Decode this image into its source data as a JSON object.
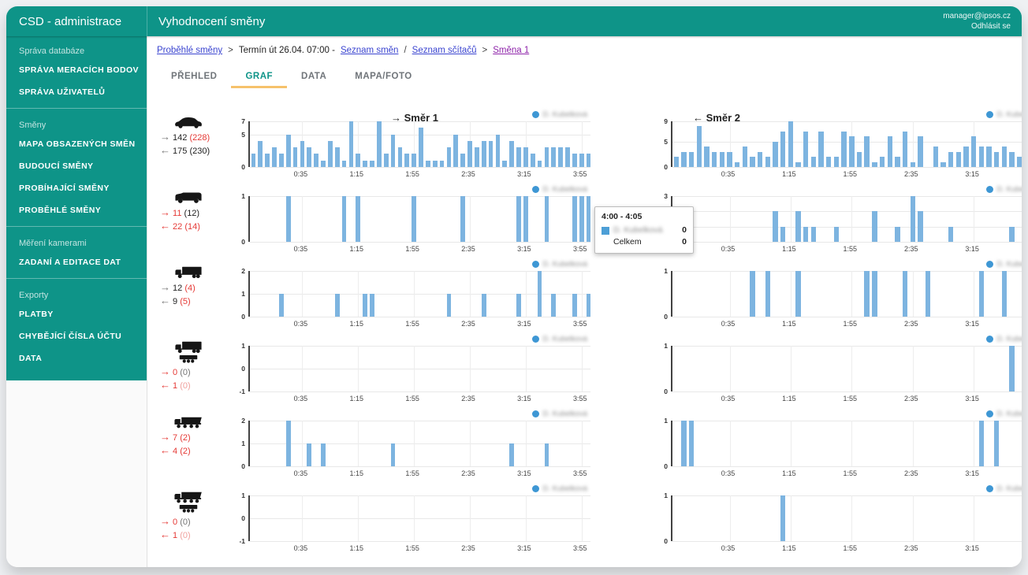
{
  "header": {
    "app_title": "CSD - administrace",
    "page_title": "Vyhodnocení směny",
    "user_email": "manager@ipsos.cz",
    "logout_label": "Odhlásit se"
  },
  "sidebar": {
    "sections": [
      {
        "label": "Správa databáze",
        "items": [
          "SPRÁVA MERACÍCH BODOV",
          "SPRÁVA UŽIVATELŮ"
        ]
      },
      {
        "label": "Směny",
        "items": [
          "MAPA OBSAZENÝCH SMĚN",
          "BUDOUCÍ SMĚNY",
          "PROBÍHAJÍCÍ SMĚNY",
          "PROBĚHLÉ SMĚNY"
        ]
      },
      {
        "label": "Měření kamerami",
        "items": [
          "ZADANÍ A EDITACE DAT"
        ]
      },
      {
        "label": "Exporty",
        "items": [
          "PLATBY",
          "CHYBĚJÍCÍ ČÍSLA ÚČTU",
          "DATA"
        ]
      }
    ]
  },
  "breadcrumb": {
    "parts": [
      {
        "text": "Proběhlé směny",
        "style": "link"
      },
      {
        "text": ">",
        "style": "sep"
      },
      {
        "text": "Termín út 26.04. 07:00 -",
        "style": "text"
      },
      {
        "text": "Seznam směn",
        "style": "link"
      },
      {
        "text": "/",
        "style": "sep"
      },
      {
        "text": "Seznam sčítačů",
        "style": "link"
      },
      {
        "text": ">",
        "style": "sep"
      },
      {
        "text": "Směna 1",
        "style": "link-visited"
      }
    ]
  },
  "tabs": [
    {
      "label": "PŘEHLED",
      "active": false
    },
    {
      "label": "GRAF",
      "active": true
    },
    {
      "label": "DATA",
      "active": false
    },
    {
      "label": "MAPA/FOTO",
      "active": false
    }
  ],
  "direction_headers": {
    "dir1": "→ Směr 1",
    "dir2": "← Směr 2"
  },
  "legend": {
    "name": "D. Kubelková"
  },
  "tooltip": {
    "title": "4:00 - 4:05",
    "series_name": "D. Kubelková",
    "series_value": "0",
    "total_label": "Celkem",
    "total_value": "0"
  },
  "colors": {
    "teal": "#0E9488",
    "bar_blue": "#7DB4E0",
    "legend_blue": "#3E97D4",
    "tooltip_square_blue": "#4D9FD6",
    "red": "#E53935",
    "tab_underline_amber": "#F6C26B",
    "link_blue": "#3B45D0",
    "link_visited_purple": "#8E24AA"
  },
  "chart_data": {
    "type": "bar",
    "bins": 49,
    "bin_minutes": 5,
    "x_ticks": [
      "0:35",
      "1:15",
      "1:55",
      "2:35",
      "3:15",
      "3:55"
    ],
    "tick_bins": [
      7,
      15,
      23,
      31,
      39,
      47
    ],
    "rows": [
      {
        "vehicle": "car",
        "dir1": {
          "arrow": "→",
          "value": "142",
          "paren": "(228)",
          "arrow_color": "gray",
          "value_color": "black",
          "paren_color": "red"
        },
        "dir2": {
          "arrow": "←",
          "value": "175",
          "paren": "(230)",
          "arrow_color": "gray",
          "value_color": "black",
          "paren_color": "black"
        },
        "left": {
          "ymin": 0,
          "ymax": 7,
          "ylabels": [
            7,
            5,
            0
          ],
          "values": [
            2,
            4,
            2,
            3,
            2,
            5,
            3,
            4,
            3,
            2,
            1,
            4,
            3,
            1,
            7,
            2,
            1,
            1,
            7,
            2,
            5,
            3,
            2,
            2,
            6,
            1,
            1,
            1,
            3,
            5,
            2,
            4,
            3,
            4,
            4,
            5,
            1,
            4,
            3,
            3,
            2,
            1,
            3,
            3,
            3,
            3,
            2,
            2,
            2
          ]
        },
        "right": {
          "ymin": 0,
          "ymax": 9,
          "ylabels": [
            9,
            5,
            0
          ],
          "values": [
            2,
            3,
            3,
            8,
            4,
            3,
            3,
            3,
            1,
            4,
            2,
            3,
            2,
            5,
            7,
            9,
            1,
            7,
            2,
            7,
            2,
            2,
            7,
            6,
            3,
            6,
            1,
            2,
            6,
            2,
            7,
            1,
            6,
            0,
            4,
            1,
            3,
            3,
            4,
            6,
            4,
            4,
            3,
            4,
            3,
            2,
            0,
            4,
            2
          ]
        }
      },
      {
        "vehicle": "van",
        "dir1": {
          "arrow": "→",
          "value": "11",
          "paren": "(12)",
          "arrow_color": "red",
          "value_color": "red",
          "paren_color": "black"
        },
        "dir2": {
          "arrow": "←",
          "value": "22",
          "paren": "(14)",
          "arrow_color": "red",
          "value_color": "red",
          "paren_color": "red"
        },
        "left": {
          "ymin": 0,
          "ymax": 1,
          "ylabels": [
            1,
            0
          ],
          "values": [
            0,
            0,
            0,
            0,
            0,
            1,
            0,
            0,
            0,
            0,
            0,
            0,
            0,
            1,
            0,
            1,
            0,
            0,
            0,
            0,
            0,
            0,
            0,
            1,
            0,
            0,
            0,
            0,
            0,
            0,
            1,
            0,
            0,
            0,
            0,
            0,
            0,
            0,
            1,
            1,
            0,
            0,
            1,
            0,
            0,
            0,
            1,
            1,
            1
          ]
        },
        "right": {
          "ymin": 0,
          "ymax": 3,
          "ylabels": [
            3,
            2,
            1,
            0
          ],
          "values": [
            0,
            0,
            1,
            0,
            0,
            0,
            0,
            0,
            0,
            0,
            0,
            0,
            0,
            2,
            1,
            0,
            2,
            1,
            1,
            0,
            0,
            1,
            0,
            0,
            0,
            0,
            2,
            0,
            0,
            1,
            0,
            3,
            2,
            0,
            0,
            0,
            1,
            0,
            0,
            0,
            0,
            0,
            0,
            0,
            1,
            0,
            0,
            2,
            1
          ]
        }
      },
      {
        "vehicle": "truck",
        "dir1": {
          "arrow": "→",
          "value": "12",
          "paren": "(4)",
          "arrow_color": "gray",
          "value_color": "black",
          "paren_color": "red"
        },
        "dir2": {
          "arrow": "←",
          "value": "9",
          "paren": "(5)",
          "arrow_color": "gray",
          "value_color": "black",
          "paren_color": "red"
        },
        "left": {
          "ymin": 0,
          "ymax": 2,
          "ylabels": [
            2,
            1,
            0
          ],
          "values": [
            0,
            0,
            0,
            0,
            1,
            0,
            0,
            0,
            0,
            0,
            0,
            0,
            1,
            0,
            0,
            0,
            1,
            1,
            0,
            0,
            0,
            0,
            0,
            0,
            0,
            0,
            0,
            0,
            1,
            0,
            0,
            0,
            0,
            1,
            0,
            0,
            0,
            0,
            1,
            0,
            0,
            2,
            0,
            1,
            0,
            0,
            1,
            0,
            1
          ]
        },
        "right": {
          "ymin": 0,
          "ymax": 1,
          "ylabels": [
            1,
            0
          ],
          "values": [
            0,
            0,
            0,
            0,
            0,
            0,
            0,
            0,
            0,
            0,
            1,
            0,
            1,
            0,
            0,
            0,
            1,
            0,
            0,
            0,
            0,
            0,
            0,
            0,
            0,
            1,
            1,
            0,
            0,
            0,
            1,
            0,
            0,
            1,
            0,
            0,
            0,
            0,
            0,
            0,
            1,
            0,
            0,
            1,
            0,
            0,
            0,
            0,
            0
          ]
        }
      },
      {
        "vehicle": "truck-trailer",
        "dir1": {
          "arrow": "→",
          "value": "0",
          "paren": "(0)",
          "arrow_color": "red",
          "value_color": "red",
          "paren_color": "gray"
        },
        "dir2": {
          "arrow": "←",
          "value": "1",
          "paren": "(0)",
          "arrow_color": "red",
          "value_color": "red",
          "paren_color": "red-light"
        },
        "left": {
          "ymin": -1,
          "ymax": 1,
          "ylabels": [
            1,
            0,
            -1
          ],
          "values": [
            0,
            0,
            0,
            0,
            0,
            0,
            0,
            0,
            0,
            0,
            0,
            0,
            0,
            0,
            0,
            0,
            0,
            0,
            0,
            0,
            0,
            0,
            0,
            0,
            0,
            0,
            0,
            0,
            0,
            0,
            0,
            0,
            0,
            0,
            0,
            0,
            0,
            0,
            0,
            0,
            0,
            0,
            0,
            0,
            0,
            0,
            0,
            0,
            0
          ]
        },
        "right": {
          "ymin": 0,
          "ymax": 1,
          "ylabels": [
            1,
            0
          ],
          "values": [
            0,
            0,
            0,
            0,
            0,
            0,
            0,
            0,
            0,
            0,
            0,
            0,
            0,
            0,
            0,
            0,
            0,
            0,
            0,
            0,
            0,
            0,
            0,
            0,
            0,
            0,
            0,
            0,
            0,
            0,
            0,
            0,
            0,
            0,
            0,
            0,
            0,
            0,
            0,
            0,
            0,
            0,
            0,
            0,
            1,
            0,
            0,
            0,
            0
          ]
        }
      },
      {
        "vehicle": "tipper",
        "dir1": {
          "arrow": "→",
          "value": "7",
          "paren": "(2)",
          "arrow_color": "red",
          "value_color": "red",
          "paren_color": "red"
        },
        "dir2": {
          "arrow": "←",
          "value": "4",
          "paren": "(2)",
          "arrow_color": "red",
          "value_color": "red",
          "paren_color": "red"
        },
        "left": {
          "ymin": 0,
          "ymax": 2,
          "ylabels": [
            2,
            1,
            0
          ],
          "values": [
            0,
            0,
            0,
            0,
            0,
            2,
            0,
            0,
            1,
            0,
            1,
            0,
            0,
            0,
            0,
            0,
            0,
            0,
            0,
            0,
            1,
            0,
            0,
            0,
            0,
            0,
            0,
            0,
            0,
            0,
            0,
            0,
            0,
            0,
            0,
            0,
            0,
            1,
            0,
            0,
            0,
            0,
            1,
            0,
            0,
            0,
            0,
            0,
            0
          ]
        },
        "right": {
          "ymin": 0,
          "ymax": 1,
          "ylabels": [
            1,
            0
          ],
          "values": [
            0,
            1,
            1,
            0,
            0,
            0,
            0,
            0,
            0,
            0,
            0,
            0,
            0,
            0,
            0,
            0,
            0,
            0,
            0,
            0,
            0,
            0,
            0,
            0,
            0,
            0,
            0,
            0,
            0,
            0,
            0,
            0,
            0,
            0,
            0,
            0,
            0,
            0,
            0,
            0,
            1,
            0,
            1,
            0,
            0,
            0,
            0,
            0,
            0
          ]
        }
      },
      {
        "vehicle": "tipper-trailer",
        "dir1": {
          "arrow": "→",
          "value": "0",
          "paren": "(0)",
          "arrow_color": "red",
          "value_color": "red",
          "paren_color": "gray"
        },
        "dir2": {
          "arrow": "←",
          "value": "1",
          "paren": "(0)",
          "arrow_color": "red",
          "value_color": "red",
          "paren_color": "red-light"
        },
        "left": {
          "ymin": -1,
          "ymax": 1,
          "ylabels": [
            1,
            0,
            -1
          ],
          "values": [
            0,
            0,
            0,
            0,
            0,
            0,
            0,
            0,
            0,
            0,
            0,
            0,
            0,
            0,
            0,
            0,
            0,
            0,
            0,
            0,
            0,
            0,
            0,
            0,
            0,
            0,
            0,
            0,
            0,
            0,
            0,
            0,
            0,
            0,
            0,
            0,
            0,
            0,
            0,
            0,
            0,
            0,
            0,
            0,
            0,
            0,
            0,
            0,
            0
          ]
        },
        "right": {
          "ymin": 0,
          "ymax": 1,
          "ylabels": [
            1,
            0
          ],
          "values": [
            0,
            0,
            0,
            0,
            0,
            0,
            0,
            0,
            0,
            0,
            0,
            0,
            0,
            0,
            1,
            0,
            0,
            0,
            0,
            0,
            0,
            0,
            0,
            0,
            0,
            0,
            0,
            0,
            0,
            0,
            0,
            0,
            0,
            0,
            0,
            0,
            0,
            0,
            0,
            0,
            0,
            0,
            0,
            0,
            0,
            0,
            0,
            0,
            0
          ]
        }
      }
    ]
  }
}
